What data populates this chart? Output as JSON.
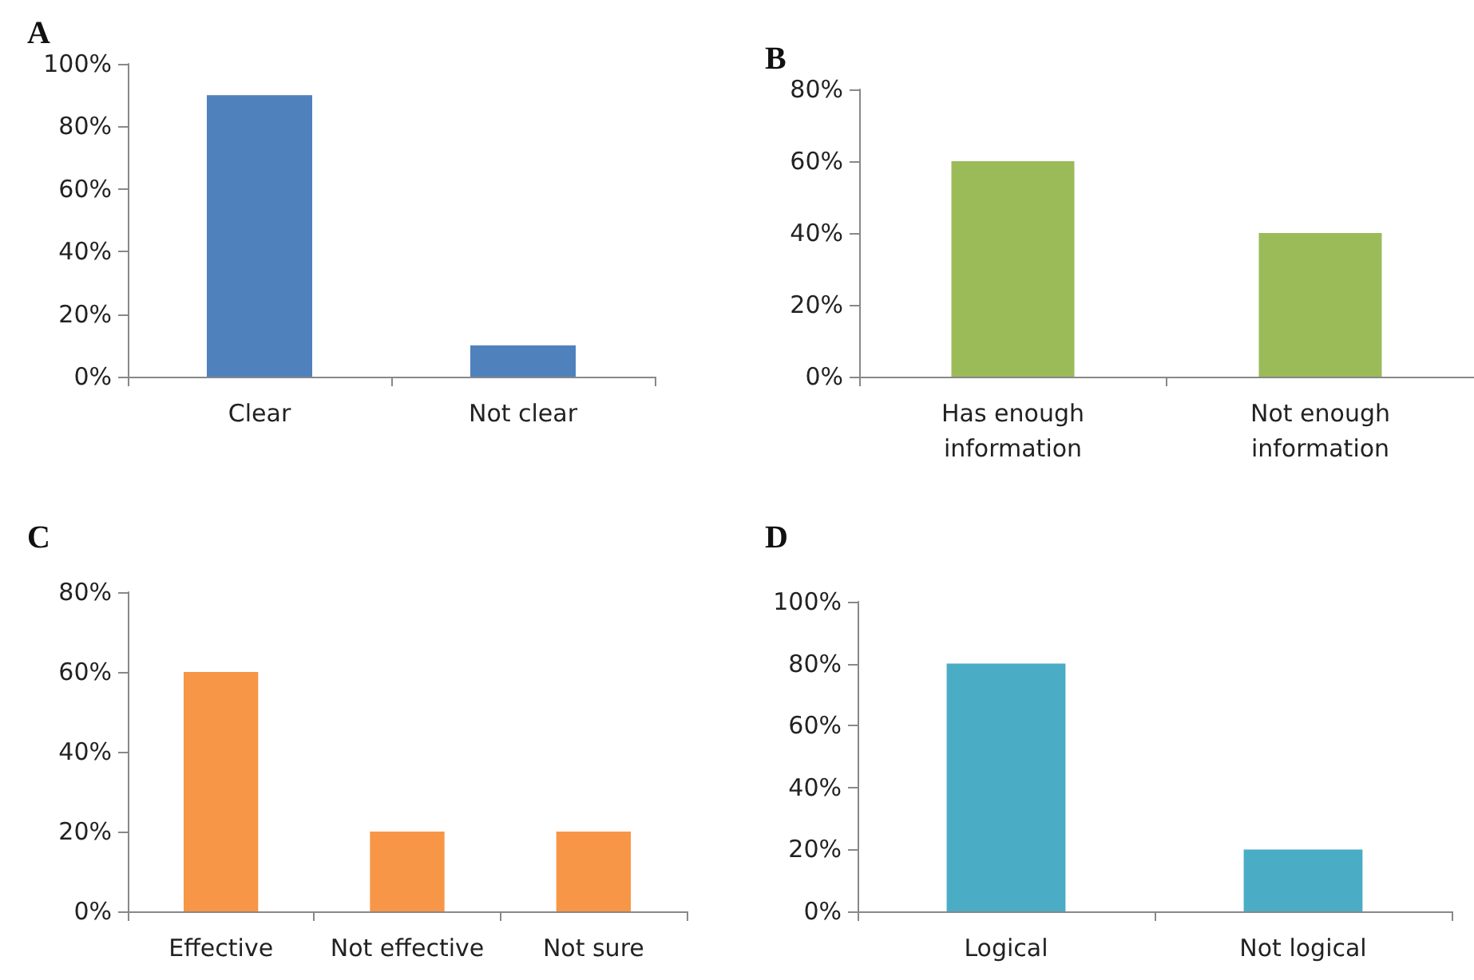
{
  "chart_data": [
    {
      "type": "bar",
      "title": "A",
      "categories": [
        "Clear",
        "Not clear"
      ],
      "values": [
        90,
        10
      ],
      "color": "#4f81bd",
      "ylim": [
        0,
        100
      ],
      "yticks": [
        {
          "value": 0,
          "label": "0%"
        },
        {
          "value": 20,
          "label": "20%"
        },
        {
          "value": 40,
          "label": "40%"
        },
        {
          "value": 60,
          "label": "60%"
        },
        {
          "value": 80,
          "label": "80%"
        },
        {
          "value": 100,
          "label": "100%"
        }
      ],
      "grid": false
    },
    {
      "type": "bar",
      "title": "B",
      "categories": [
        "Has enough\ninformation",
        "Not enough\ninformation"
      ],
      "values": [
        60,
        40
      ],
      "color": "#9bbb59",
      "ylim": [
        0,
        80
      ],
      "yticks": [
        {
          "value": 0,
          "label": "0%"
        },
        {
          "value": 20,
          "label": "20%"
        },
        {
          "value": 40,
          "label": "40%"
        },
        {
          "value": 60,
          "label": "60%"
        },
        {
          "value": 80,
          "label": "80%"
        }
      ],
      "grid": false
    },
    {
      "type": "bar",
      "title": "C",
      "categories": [
        "Effective",
        "Not effective",
        "Not sure"
      ],
      "values": [
        60,
        20,
        20
      ],
      "color": "#f79646",
      "ylim": [
        0,
        80
      ],
      "yticks": [
        {
          "value": 0,
          "label": "0%"
        },
        {
          "value": 20,
          "label": "20%"
        },
        {
          "value": 40,
          "label": "40%"
        },
        {
          "value": 60,
          "label": "60%"
        },
        {
          "value": 80,
          "label": "80%"
        }
      ],
      "grid": false
    },
    {
      "type": "bar",
      "title": "D",
      "categories": [
        "Logical",
        "Not logical"
      ],
      "values": [
        80,
        20
      ],
      "color": "#4bacc6",
      "ylim": [
        0,
        100
      ],
      "yticks": [
        {
          "value": 0,
          "label": "0%"
        },
        {
          "value": 20,
          "label": "20%"
        },
        {
          "value": 40,
          "label": "40%"
        },
        {
          "value": 60,
          "label": "60%"
        },
        {
          "value": 80,
          "label": "80%"
        },
        {
          "value": 100,
          "label": "100%"
        }
      ],
      "grid": false
    }
  ]
}
